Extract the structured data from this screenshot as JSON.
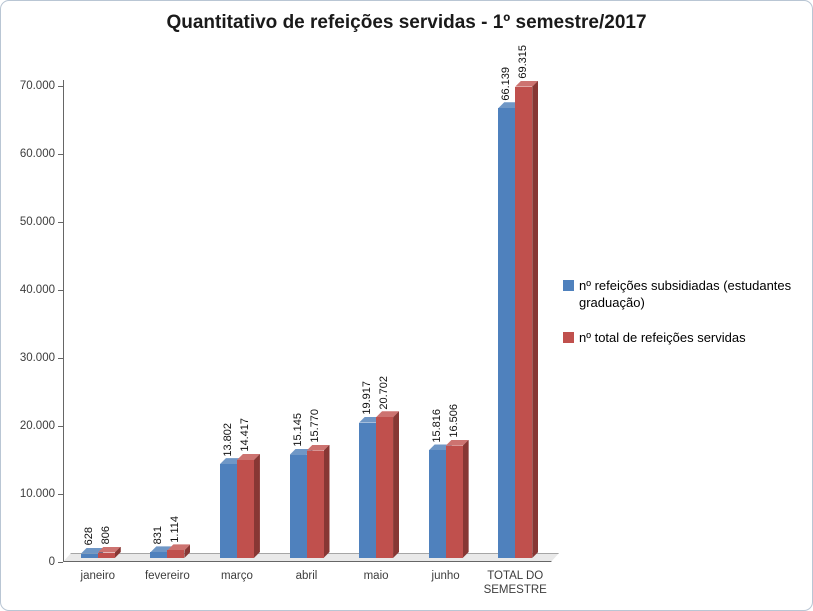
{
  "chart_data": {
    "type": "bar",
    "style": "3d-clustered-column",
    "title": "Quantitativo de refeições servidas - 1º semestre/2017",
    "categories": [
      "janeiro",
      "fevereiro",
      "março",
      "abril",
      "maio",
      "junho",
      "TOTAL DO SEMESTRE"
    ],
    "series": [
      {
        "name": "nº refeições subsidiadas (estudantes graduação)",
        "color": "#4f81bd",
        "side_color": "#2f5783",
        "top_color": "#6f97c6",
        "values": [
          628,
          831,
          13802,
          15145,
          19917,
          15816,
          66139
        ],
        "value_labels": [
          "628",
          "831",
          "13.802",
          "15.145",
          "19.917",
          "15.816",
          "66.139"
        ]
      },
      {
        "name": "nº total de refeições servidas",
        "color": "#c0504d",
        "side_color": "#873734",
        "top_color": "#cd7370",
        "values": [
          806,
          1114,
          14417,
          15770,
          20702,
          16506,
          69315
        ],
        "value_labels": [
          "806",
          "1.114",
          "14.417",
          "15.770",
          "20.702",
          "16.506",
          "69.315"
        ]
      }
    ],
    "y_axis": {
      "min": 0,
      "max": 70000,
      "step": 10000,
      "tick_labels": [
        "0",
        "10.000",
        "20.000",
        "30.000",
        "40.000",
        "50.000",
        "60.000",
        "70.000"
      ]
    },
    "xlabel": "",
    "ylabel": "",
    "grid": false,
    "legend_position": "right"
  }
}
